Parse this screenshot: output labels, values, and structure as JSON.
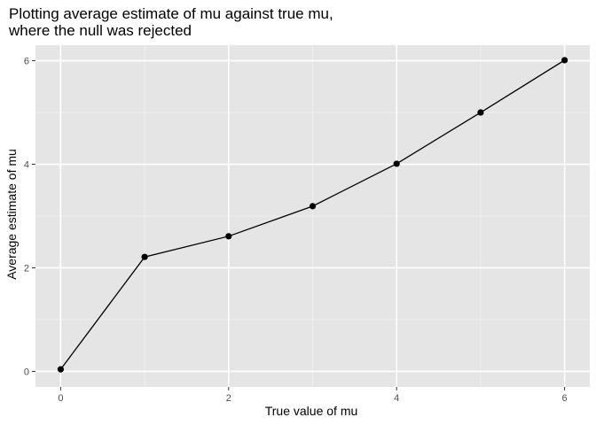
{
  "chart_data": {
    "type": "line",
    "title_lines": [
      "Plotting average estimate of mu against true mu,",
      "where the null was rejected"
    ],
    "xlabel": "True value of mu",
    "ylabel": "Average estimate of mu",
    "x": [
      0,
      1,
      2,
      3,
      4,
      5,
      6
    ],
    "y": [
      0.04,
      2.21,
      2.61,
      3.19,
      4.01,
      5.0,
      6.01
    ],
    "xlim": [
      -0.3,
      6.3
    ],
    "ylim": [
      -0.3,
      6.3
    ],
    "x_ticks": [
      0,
      2,
      4,
      6
    ],
    "x_minor": [
      1,
      3,
      5
    ],
    "y_ticks": [
      0,
      2,
      4,
      6
    ],
    "y_minor": [
      1,
      3,
      5
    ],
    "grid": true,
    "colors": {
      "panel": "#e5e5e5",
      "grid_major": "#ffffff",
      "grid_minor": "#f2f2f2",
      "line": "#000000",
      "point": "#000000"
    }
  }
}
